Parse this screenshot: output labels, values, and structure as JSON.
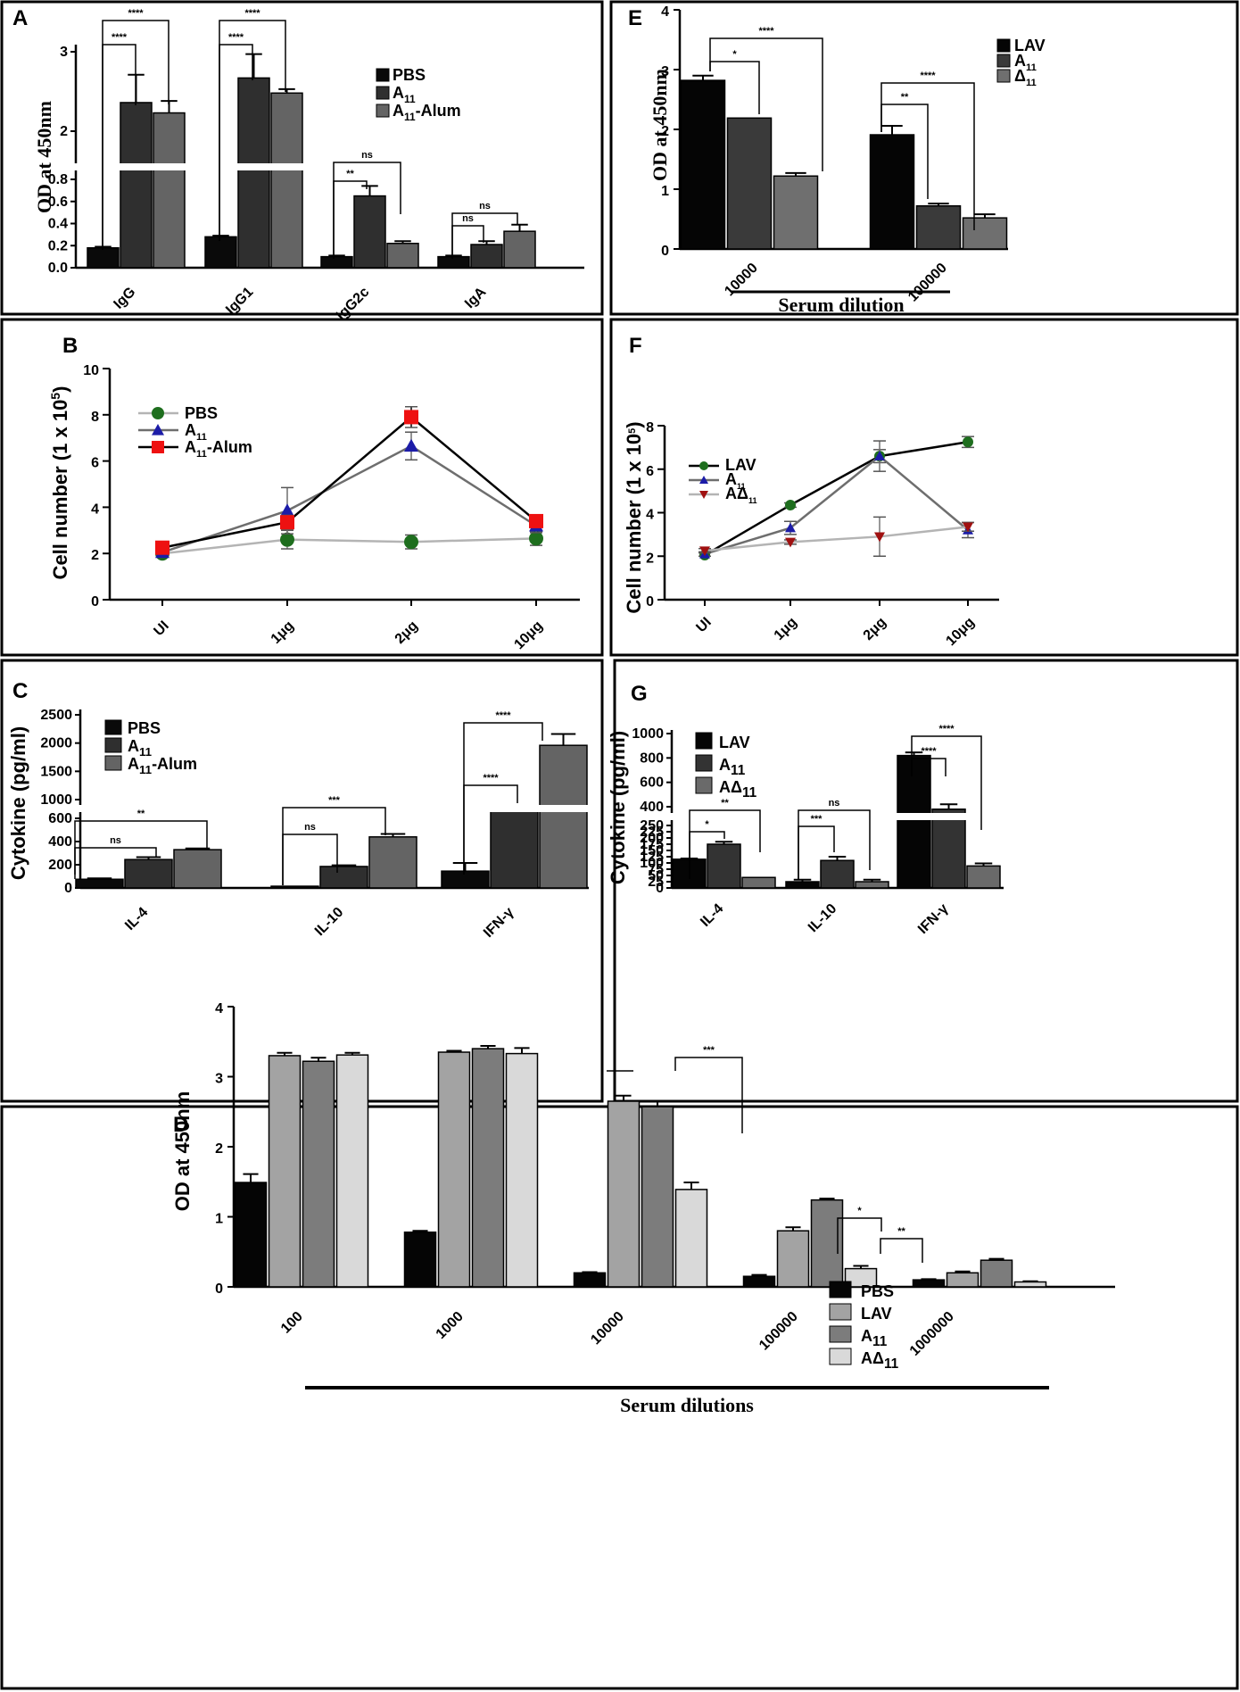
{
  "chart_data": [
    {
      "panel": "A",
      "type": "bar",
      "ylabel": "OD at 450nm",
      "yticks_lower": [
        "0.0",
        "0.2",
        "0.4",
        "0.6",
        "0.8"
      ],
      "yticks_upper": [
        "2",
        "3"
      ],
      "categories": [
        "IgG",
        "IgG1",
        "IgG2c",
        "IgA"
      ],
      "series": [
        {
          "name": "PBS",
          "sub": "",
          "values": [
            0.18,
            0.28,
            0.1,
            0.1
          ],
          "errors": [
            0.01,
            0.01,
            0.01,
            0.01
          ],
          "color": "#0a0a0a"
        },
        {
          "name": "A",
          "sub": "11",
          "values": [
            2.36,
            2.67,
            0.65,
            0.21
          ],
          "errors": [
            0.35,
            0.3,
            0.09,
            0.03
          ],
          "color": "#2f2f2f"
        },
        {
          "name": "A",
          "sub": "11",
          "suffix": "-Alum",
          "values": [
            2.23,
            2.48,
            0.22,
            0.33
          ],
          "errors": [
            0.15,
            0.05,
            0.02,
            0.06
          ],
          "color": "#646464"
        }
      ],
      "significance": [
        "****",
        "****",
        "****",
        "****",
        "**",
        "ns",
        "ns",
        "ns"
      ]
    },
    {
      "panel": "B",
      "type": "line",
      "ylabel": "Cell number (1 x 10",
      "ylabel_sup": "5",
      "ylabel_end": ")",
      "categories": [
        "UI",
        "1μg",
        "2μg",
        "10μg"
      ],
      "ylim": [
        0,
        10
      ],
      "yticks": [
        "0",
        "2",
        "4",
        "6",
        "8",
        "10"
      ],
      "series": [
        {
          "name": "PBS",
          "sub": "",
          "values": [
            2.0,
            2.6,
            2.5,
            2.65
          ],
          "errors": [
            0.1,
            0.4,
            0.3,
            0.3
          ],
          "color": "#1e6e1e",
          "line": "#b4b4b4",
          "marker": "circle"
        },
        {
          "name": "A",
          "sub": "11",
          "values": [
            2.05,
            3.85,
            6.65,
            3.2
          ],
          "errors": [
            0.1,
            1.0,
            0.6,
            0.3
          ],
          "color": "#1c1ca8",
          "line": "#6e6e6e",
          "marker": "triangle"
        },
        {
          "name": "A",
          "sub": "11",
          "suffix": "-Alum",
          "values": [
            2.25,
            3.35,
            7.9,
            3.4
          ],
          "errors": [
            0.1,
            0.3,
            0.45,
            0.2
          ],
          "color": "#ee1111",
          "line": "#000000",
          "marker": "square"
        }
      ]
    },
    {
      "panel": "C",
      "type": "bar",
      "ylabel": "Cytokine  (pg/ml)",
      "yticks_lower": [
        "0",
        "200",
        "400",
        "600"
      ],
      "yticks_upper": [
        "1000",
        "1500",
        "2000",
        "2500"
      ],
      "categories": [
        "IL-4",
        "IL-10",
        "IFN-γ"
      ],
      "series": [
        {
          "name": "PBS",
          "sub": "",
          "values": [
            75,
            15,
            145
          ],
          "errors": [
            8,
            0,
            70
          ],
          "color": "#0a0a0a"
        },
        {
          "name": "A",
          "sub": "11",
          "values": [
            245,
            185,
            880
          ],
          "errors": [
            20,
            10,
            10
          ],
          "color": "#2f2f2f"
        },
        {
          "name": "A",
          "sub": "11",
          "suffix": "-Alum",
          "values": [
            330,
            440,
            1960
          ],
          "errors": [
            10,
            25,
            200
          ],
          "color": "#646464"
        }
      ],
      "significance": [
        "**",
        "ns",
        "***",
        "ns",
        "****",
        "****"
      ]
    },
    {
      "panel": "D",
      "type": "bar",
      "ylabel": "OD at 450nm",
      "xlabel": "Serum dilutions",
      "categories": [
        "100",
        "1000",
        "10000",
        "100000",
        "1000000"
      ],
      "ylim": [
        0,
        4
      ],
      "yticks": [
        "0",
        "1",
        "2",
        "3",
        "4"
      ],
      "series": [
        {
          "name": "PBS",
          "sub": "",
          "values": [
            1.49,
            0.78,
            0.2,
            0.15,
            0.1
          ],
          "errors": [
            0.12,
            0.02,
            0.01,
            0.02,
            0.01
          ],
          "color": "#050505"
        },
        {
          "name": "LAV",
          "sub": "",
          "values": [
            3.3,
            3.35,
            2.65,
            0.8,
            0.2
          ],
          "errors": [
            0.04,
            0.02,
            0.08,
            0.05,
            0.02
          ],
          "color": "#a3a3a3"
        },
        {
          "name": "A",
          "sub": "11",
          "values": [
            3.22,
            3.4,
            2.57,
            1.24,
            0.38
          ],
          "errors": [
            0.05,
            0.04,
            0.08,
            0.02,
            0.02
          ],
          "color": "#7c7c7c"
        },
        {
          "name": "AΔ",
          "sub": "11",
          "values": [
            3.31,
            3.33,
            1.39,
            0.26,
            0.07
          ],
          "errors": [
            0.03,
            0.08,
            0.1,
            0.04,
            0.01
          ],
          "color": "#d9d9d9"
        }
      ],
      "significance": [
        "***",
        "*",
        "**"
      ]
    },
    {
      "panel": "E",
      "type": "bar",
      "ylabel": "OD at 450nm",
      "xlabel": "Serum dilution",
      "categories": [
        "10000",
        "100000"
      ],
      "ylim": [
        0,
        4
      ],
      "yticks": [
        "0",
        "1",
        "2",
        "3",
        "4"
      ],
      "series": [
        {
          "name": "LAV",
          "sub": "",
          "values": [
            2.82,
            1.91
          ],
          "errors": [
            0.08,
            0.15
          ],
          "color": "#050505"
        },
        {
          "name": "A",
          "sub": "11",
          "values": [
            2.19,
            0.72
          ],
          "errors": [
            0,
            0.04
          ],
          "color": "#3a3a3a"
        },
        {
          "name": "Δ",
          "sub": "11",
          "values": [
            1.22,
            0.52
          ],
          "errors": [
            0.05,
            0.06
          ],
          "color": "#6f6f6f"
        }
      ],
      "significance": [
        "****",
        "*",
        "****",
        "**"
      ]
    },
    {
      "panel": "F",
      "type": "line",
      "ylabel": "Cell number (1 x 10",
      "ylabel_sup": "5",
      "ylabel_end": ")",
      "categories": [
        "UI",
        "1μg",
        "2μg",
        "10μg"
      ],
      "ylim": [
        0,
        8
      ],
      "yticks": [
        "0",
        "2",
        "4",
        "6",
        "8"
      ],
      "series": [
        {
          "name": "LAV",
          "sub": "",
          "values": [
            2.05,
            4.35,
            6.6,
            7.25
          ],
          "errors": [
            0.05,
            0.1,
            0.3,
            0.25
          ],
          "color": "#1e6e1e",
          "line": "#000000",
          "marker": "circle"
        },
        {
          "name": "A",
          "sub": "11",
          "values": [
            2.1,
            3.3,
            6.6,
            3.2
          ],
          "errors": [
            0.1,
            0.3,
            0.7,
            0.35
          ],
          "color": "#1c1ca8",
          "line": "#6e6e6e",
          "marker": "triangle"
        },
        {
          "name": "AΔ",
          "sub": "11",
          "values": [
            2.25,
            2.65,
            2.9,
            3.35
          ],
          "errors": [
            0.1,
            0.1,
            0.9,
            0.2
          ],
          "color": "#a01010",
          "line": "#b4b4b4",
          "marker": "triangle-down"
        }
      ]
    },
    {
      "panel": "G",
      "type": "bar",
      "ylabel": "Cytokine  (pg/ml)",
      "yticks_lower": [
        "0",
        "25",
        "50",
        "75",
        "100",
        "125",
        "150",
        "175",
        "200",
        "225",
        "250"
      ],
      "yticks_upper": [
        "400",
        "600",
        "800",
        "1000"
      ],
      "categories": [
        "IL-4",
        "IL-10",
        "IFN-γ"
      ],
      "series": [
        {
          "name": "LAV",
          "sub": "",
          "values": [
            115,
            25,
            820
          ],
          "errors": [
            3,
            8,
            25
          ],
          "color": "#050505"
        },
        {
          "name": "A",
          "sub": "11",
          "values": [
            175,
            110,
            380
          ],
          "errors": [
            10,
            15,
            40
          ],
          "color": "#333333"
        },
        {
          "name": "AΔ",
          "sub": "11",
          "values": [
            42,
            25,
            88
          ],
          "errors": [
            0,
            8,
            10
          ],
          "color": "#6a6a6a"
        }
      ],
      "significance": [
        "*",
        "**",
        "***",
        "ns",
        "****",
        "****"
      ]
    }
  ]
}
